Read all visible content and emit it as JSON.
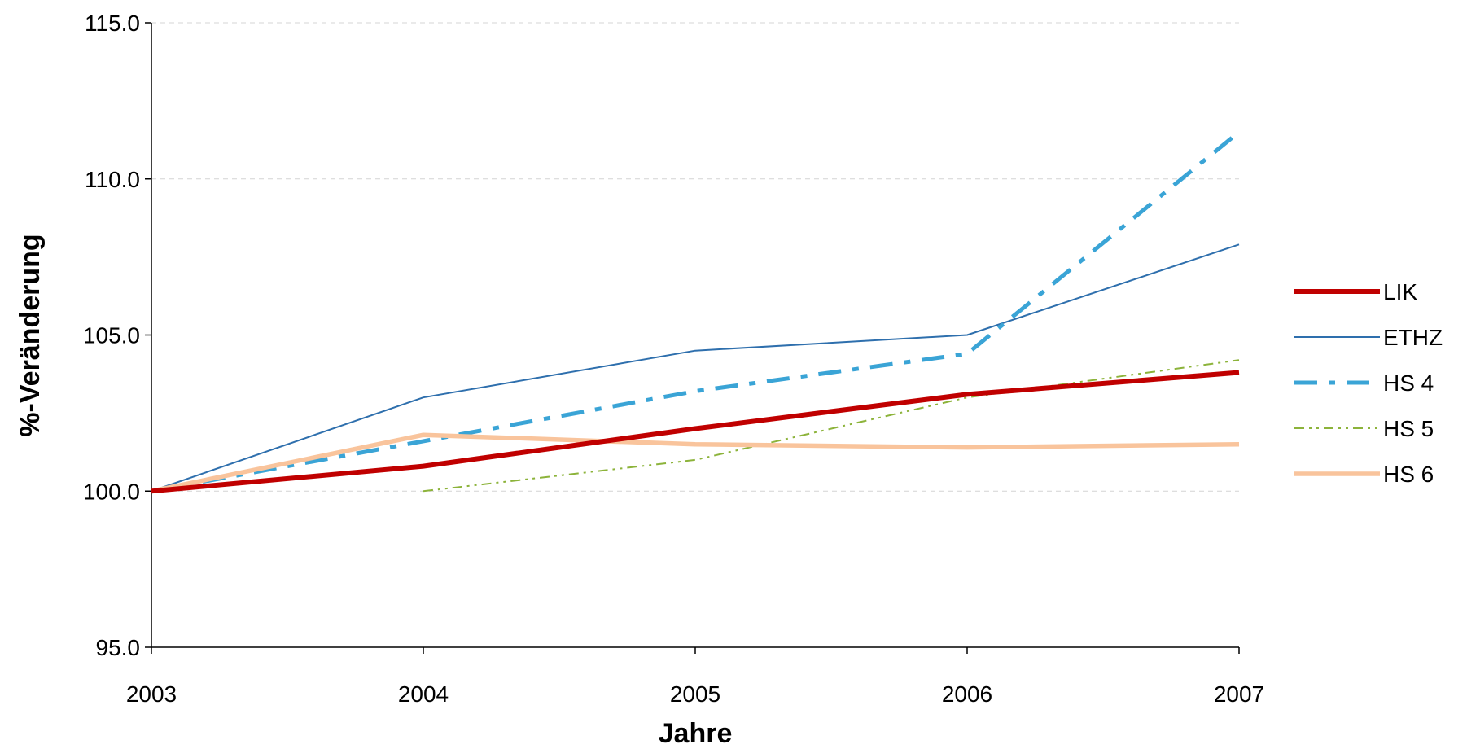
{
  "chart_data": {
    "type": "line",
    "title": "",
    "xlabel": "Jahre",
    "ylabel": "%-Veränderung",
    "x": [
      "2003",
      "2004",
      "2005",
      "2006",
      "2007"
    ],
    "ylim": [
      95.0,
      115.0
    ],
    "yticks": [
      "95.0",
      "100.0",
      "105.0",
      "110.0",
      "115.0"
    ],
    "grid": "horizontal dashed",
    "legend_position": "right",
    "series": [
      {
        "name": "LIK",
        "values": [
          100.0,
          100.8,
          102.0,
          103.1,
          103.8
        ],
        "color": "#c00000"
      },
      {
        "name": "ETHZ",
        "values": [
          100.0,
          103.0,
          104.5,
          105.0,
          107.9
        ],
        "color": "#2e6fad"
      },
      {
        "name": "HS 4",
        "values": [
          100.0,
          101.6,
          103.2,
          104.4,
          111.5
        ],
        "color": "#3aa4d6"
      },
      {
        "name": "HS 5",
        "values": [
          null,
          100.0,
          101.0,
          103.0,
          104.2
        ],
        "color": "#8cb33a"
      },
      {
        "name": "HS 6",
        "values": [
          100.0,
          101.8,
          101.5,
          101.4,
          101.5
        ],
        "color": "#f9c49c"
      }
    ]
  }
}
